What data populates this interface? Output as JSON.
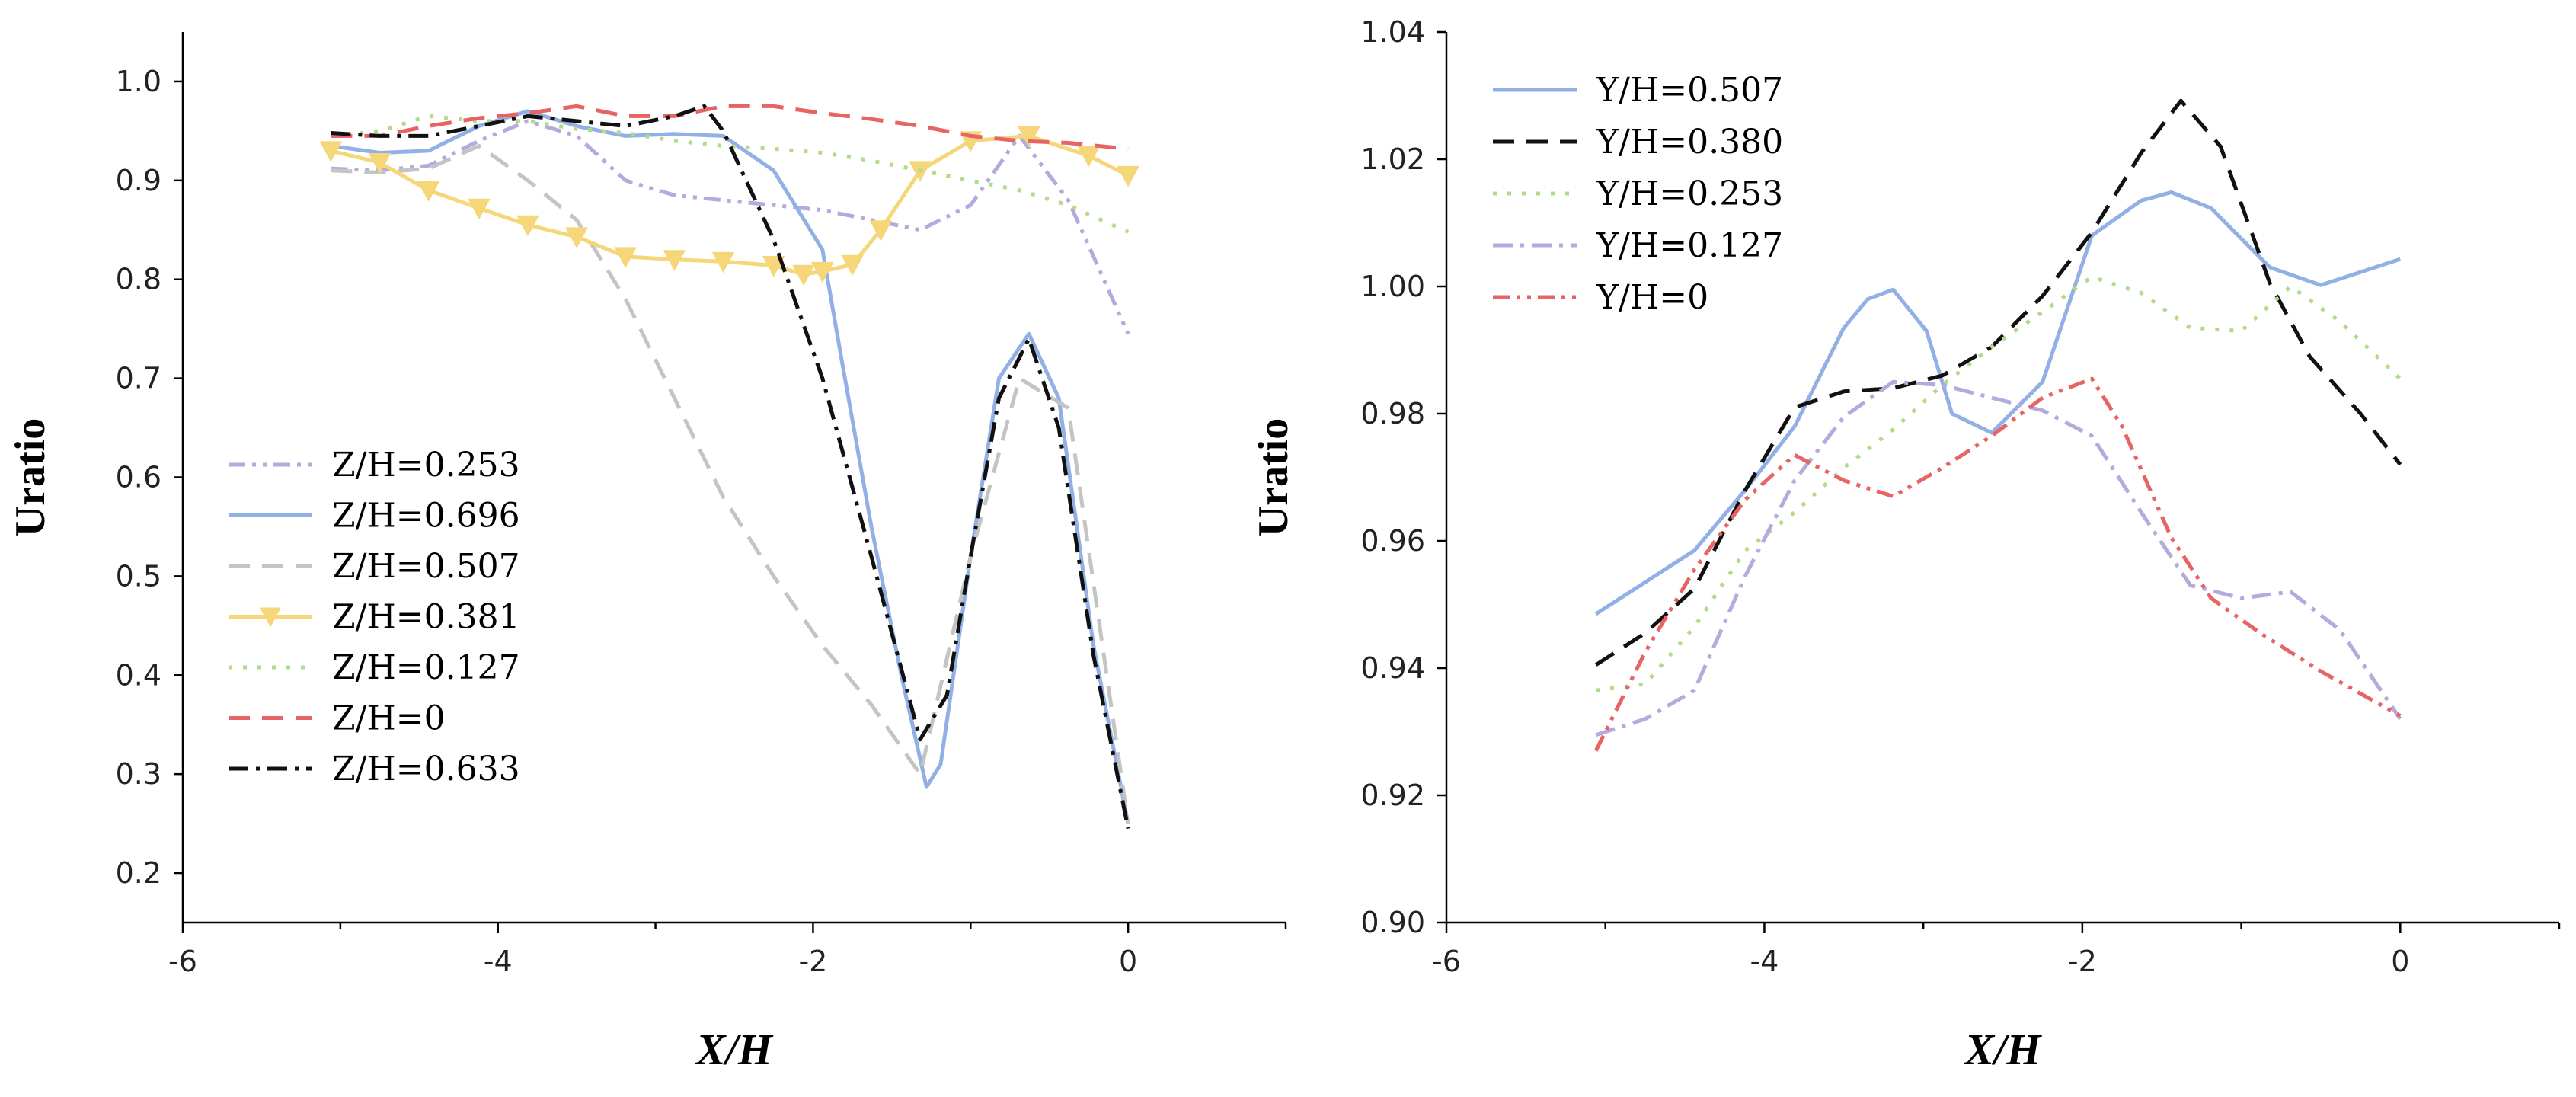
{
  "chart_data": [
    {
      "type": "line",
      "title": "",
      "xlabel": "X/H",
      "ylabel": "Uratio",
      "xlim": [
        -6,
        1
      ],
      "ylim": [
        0.15,
        1.05
      ],
      "xticks": [
        -6,
        -4,
        -2,
        0
      ],
      "xtick_labels": [
        "-6",
        "-4",
        "-2",
        "0"
      ],
      "yticks": [
        0.2,
        0.3,
        0.4,
        0.5,
        0.6,
        0.7,
        0.8,
        0.9,
        1.0
      ],
      "ytick_labels": [
        "0.2",
        "0.3",
        "0.4",
        "0.5",
        "0.6",
        "0.7",
        "0.8",
        "0.9",
        "1.0"
      ],
      "legend": "center-left",
      "series": [
        {
          "name": "Z/H=0.253",
          "color": "#b4aadd",
          "dash": "dashdotdot",
          "marker": "",
          "x": [
            -5.06,
            -4.75,
            -4.44,
            -4.12,
            -3.81,
            -3.5,
            -3.19,
            -2.88,
            -2.57,
            -2.25,
            -1.94,
            -1.63,
            -1.32,
            -1.0,
            -0.69,
            -0.38,
            0
          ],
          "y": [
            0.912,
            0.91,
            0.915,
            0.94,
            0.96,
            0.945,
            0.9,
            0.885,
            0.88,
            0.875,
            0.87,
            0.86,
            0.85,
            0.875,
            0.945,
            0.88,
            0.745
          ]
        },
        {
          "name": "Z/H=0.696",
          "color": "#92b0e6",
          "dash": "solid",
          "marker": "",
          "x": [
            -5.06,
            -4.75,
            -4.44,
            -4.12,
            -3.81,
            -3.5,
            -3.19,
            -2.88,
            -2.57,
            -2.25,
            -1.94,
            -1.82,
            -1.63,
            -1.44,
            -1.28,
            -1.19,
            -1.0,
            -0.82,
            -0.63,
            -0.44,
            -0.22,
            0
          ],
          "y": [
            0.935,
            0.928,
            0.93,
            0.955,
            0.97,
            0.955,
            0.945,
            0.947,
            0.945,
            0.91,
            0.83,
            0.72,
            0.55,
            0.4,
            0.287,
            0.31,
            0.52,
            0.7,
            0.745,
            0.68,
            0.43,
            0.25
          ]
        },
        {
          "name": "Z/H=0.507",
          "color": "#c4c4c4",
          "dash": "dashed",
          "marker": "",
          "x": [
            -5.06,
            -4.75,
            -4.44,
            -4.12,
            -3.81,
            -3.5,
            -3.19,
            -2.88,
            -2.57,
            -2.25,
            -1.94,
            -1.63,
            -1.32,
            -1.0,
            -0.69,
            -0.38,
            0
          ],
          "y": [
            0.91,
            0.908,
            0.912,
            0.935,
            0.9,
            0.86,
            0.78,
            0.68,
            0.58,
            0.5,
            0.43,
            0.37,
            0.3,
            0.52,
            0.7,
            0.67,
            0.25
          ]
        },
        {
          "name": "Z/H=0.381",
          "color": "#f5d77a",
          "dash": "solid",
          "marker": "triangle-down",
          "x": [
            -5.06,
            -4.75,
            -4.44,
            -4.12,
            -3.81,
            -3.5,
            -3.19,
            -2.88,
            -2.57,
            -2.25,
            -2.06,
            -1.94,
            -1.75,
            -1.57,
            -1.32,
            -1.0,
            -0.63,
            -0.25,
            0
          ],
          "y": [
            0.93,
            0.918,
            0.89,
            0.872,
            0.855,
            0.843,
            0.823,
            0.82,
            0.818,
            0.814,
            0.805,
            0.808,
            0.815,
            0.85,
            0.91,
            0.94,
            0.945,
            0.925,
            0.905
          ]
        },
        {
          "name": "Z/H=0.127",
          "color": "#b0dc88",
          "dash": "dotted",
          "marker": "",
          "x": [
            -5.06,
            -4.75,
            -4.44,
            -4.12,
            -3.81,
            -3.5,
            -3.19,
            -2.88,
            -2.57,
            -2.25,
            -1.94,
            -1.63,
            -1.32,
            -1.0,
            -0.69,
            -0.38,
            0
          ],
          "y": [
            0.945,
            0.95,
            0.965,
            0.96,
            0.96,
            0.952,
            0.948,
            0.94,
            0.935,
            0.932,
            0.928,
            0.92,
            0.91,
            0.9,
            0.89,
            0.875,
            0.848
          ]
        },
        {
          "name": "Z/H=0",
          "color": "#e86464",
          "dash": "dashed",
          "marker": "",
          "x": [
            -5.06,
            -4.75,
            -4.44,
            -4.12,
            -3.81,
            -3.5,
            -3.19,
            -2.88,
            -2.57,
            -2.25,
            -1.94,
            -1.63,
            -1.32,
            -1.0,
            -0.69,
            -0.38,
            0
          ],
          "y": [
            0.945,
            0.945,
            0.955,
            0.963,
            0.968,
            0.975,
            0.965,
            0.965,
            0.975,
            0.975,
            0.968,
            0.962,
            0.955,
            0.945,
            0.94,
            0.938,
            0.932
          ]
        },
        {
          "name": "Z/H=0.633",
          "color": "#111111",
          "dash": "dashdot",
          "marker": "",
          "x": [
            -5.06,
            -4.75,
            -4.44,
            -4.12,
            -3.81,
            -3.5,
            -3.19,
            -2.88,
            -2.69,
            -2.57,
            -2.25,
            -1.94,
            -1.63,
            -1.32,
            -1.15,
            -1.0,
            -0.82,
            -0.63,
            -0.44,
            -0.22,
            0
          ],
          "y": [
            0.948,
            0.945,
            0.945,
            0.955,
            0.965,
            0.96,
            0.955,
            0.965,
            0.975,
            0.95,
            0.84,
            0.7,
            0.52,
            0.335,
            0.38,
            0.52,
            0.68,
            0.74,
            0.65,
            0.42,
            0.245
          ]
        }
      ]
    },
    {
      "type": "line",
      "title": "",
      "xlabel": "X/H",
      "ylabel": "Uratio",
      "xlim": [
        -6,
        1
      ],
      "ylim": [
        0.9,
        1.04
      ],
      "xticks": [
        -6,
        -4,
        -2,
        0
      ],
      "xtick_labels": [
        "-6",
        "-4",
        "-2",
        "0"
      ],
      "yticks": [
        0.9,
        0.92,
        0.94,
        0.96,
        0.98,
        1.0,
        1.02,
        1.04
      ],
      "ytick_labels": [
        "0.90",
        "0.92",
        "0.94",
        "0.96",
        "0.98",
        "1.00",
        "1.02",
        "1.04"
      ],
      "legend": "top-left",
      "series": [
        {
          "name": "Y/H=0.507",
          "color": "#92b0e6",
          "dash": "solid",
          "marker": "",
          "x": [
            -5.06,
            -4.75,
            -4.44,
            -4.12,
            -3.81,
            -3.5,
            -3.35,
            -3.19,
            -2.98,
            -2.82,
            -2.57,
            -2.25,
            -1.94,
            -1.63,
            -1.44,
            -1.19,
            -0.82,
            -0.5,
            -0.22,
            0
          ],
          "y": [
            0.9485,
            0.9535,
            0.9585,
            0.968,
            0.978,
            0.9935,
            0.998,
            0.9995,
            0.993,
            0.98,
            0.977,
            0.985,
            1.008,
            1.0135,
            1.0148,
            1.0123,
            1.003,
            1.0002,
            1.0025,
            1.0043
          ]
        },
        {
          "name": "Y/H=0.380",
          "color": "#111111",
          "dash": "dashed",
          "marker": "",
          "x": [
            -5.06,
            -4.75,
            -4.44,
            -4.12,
            -3.81,
            -3.5,
            -3.19,
            -2.88,
            -2.57,
            -2.25,
            -1.94,
            -1.63,
            -1.38,
            -1.13,
            -0.82,
            -0.57,
            -0.25,
            0
          ],
          "y": [
            0.9405,
            0.9455,
            0.9525,
            0.968,
            0.981,
            0.9835,
            0.984,
            0.986,
            0.9905,
            0.9985,
            1.0085,
            1.021,
            1.0292,
            1.022,
            1.0005,
            0.989,
            0.98,
            0.972
          ]
        },
        {
          "name": "Y/H=0.253",
          "color": "#b0dc88",
          "dash": "dotted",
          "marker": "",
          "x": [
            -5.06,
            -4.75,
            -4.44,
            -4.12,
            -3.81,
            -3.5,
            -3.19,
            -2.88,
            -2.57,
            -2.25,
            -1.94,
            -1.63,
            -1.32,
            -1.0,
            -0.69,
            -0.38,
            0
          ],
          "y": [
            0.9365,
            0.9375,
            0.9465,
            0.9585,
            0.9645,
            0.9715,
            0.9775,
            0.9845,
            0.9905,
            0.996,
            1.0015,
            0.999,
            0.9935,
            0.993,
            1.0,
            0.9945,
            0.9855
          ]
        },
        {
          "name": "Y/H=0.127",
          "color": "#b4aadd",
          "dash": "dashdot",
          "marker": "",
          "x": [
            -5.06,
            -4.75,
            -4.44,
            -4.12,
            -3.81,
            -3.5,
            -3.19,
            -2.88,
            -2.57,
            -2.25,
            -1.94,
            -1.63,
            -1.32,
            -1.0,
            -0.69,
            -0.38,
            0
          ],
          "y": [
            0.9295,
            0.932,
            0.9365,
            0.9545,
            0.9695,
            0.9795,
            0.985,
            0.9845,
            0.9825,
            0.9805,
            0.9765,
            0.9645,
            0.953,
            0.951,
            0.952,
            0.946,
            0.932
          ]
        },
        {
          "name": "Y/H=0",
          "color": "#e86464",
          "dash": "dashdotdot",
          "marker": "",
          "x": [
            -5.06,
            -4.75,
            -4.44,
            -4.12,
            -3.81,
            -3.5,
            -3.19,
            -2.88,
            -2.57,
            -2.25,
            -1.94,
            -1.75,
            -1.44,
            -1.19,
            -0.88,
            -0.5,
            0
          ],
          "y": [
            0.927,
            0.9425,
            0.9555,
            0.9665,
            0.9735,
            0.9695,
            0.967,
            0.9715,
            0.9765,
            0.9825,
            0.9855,
            0.978,
            0.9605,
            0.951,
            0.9455,
            0.9395,
            0.9325
          ]
        }
      ]
    }
  ]
}
